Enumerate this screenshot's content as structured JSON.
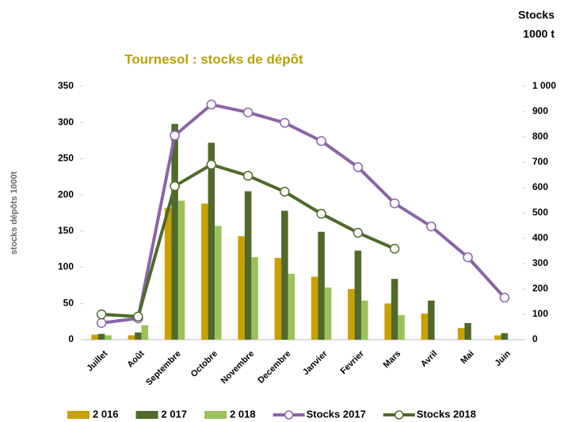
{
  "chart_data": {
    "type": "bar",
    "title": "Tournesol : stocks de dépôt",
    "ylabel": "stocks dépôts 1000t",
    "y2label": [
      "Stocks",
      "1000 t"
    ],
    "categories": [
      "Juillet",
      "Août",
      "Septembre",
      "Octobre",
      "Novembre",
      "Decembre",
      "Janvier",
      "Fevrier",
      "Mars",
      "Avril",
      "Mai",
      "Juin"
    ],
    "series": [
      {
        "name": "2 016",
        "type": "bar",
        "color": "#c9a000",
        "values": [
          7,
          6,
          182,
          188,
          143,
          113,
          87,
          70,
          50,
          36,
          16,
          6
        ]
      },
      {
        "name": "2 017",
        "type": "bar",
        "color": "#4f6a2a",
        "values": [
          8,
          10,
          298,
          272,
          205,
          178,
          149,
          123,
          84,
          54,
          23,
          9
        ]
      },
      {
        "name": "2 018",
        "type": "bar",
        "color": "#9bc25a",
        "values": [
          6,
          20,
          192,
          157,
          114,
          91,
          72,
          54,
          34,
          null,
          null,
          null
        ]
      },
      {
        "name": "Stocks 2017",
        "type": "line",
        "axis": "y2",
        "color": "#8b63a8",
        "values": [
          66,
          84,
          806,
          928,
          897,
          856,
          784,
          681,
          538,
          447,
          325,
          166
        ]
      },
      {
        "name": "Stocks 2018",
        "type": "line",
        "axis": "y2",
        "color": "#4f6a2a",
        "values": [
          100,
          91,
          606,
          691,
          647,
          584,
          497,
          422,
          359,
          null,
          null,
          null
        ]
      }
    ],
    "ylim": [
      0,
      350
    ],
    "yticks": [
      0,
      50,
      100,
      150,
      200,
      250,
      300,
      350
    ],
    "y2lim": [
      0,
      1000
    ],
    "y2ticks": [
      0,
      100,
      200,
      300,
      400,
      500,
      600,
      700,
      800,
      900,
      {
        "value": 1000,
        "label": "1 000"
      }
    ],
    "legend": "bottom"
  }
}
